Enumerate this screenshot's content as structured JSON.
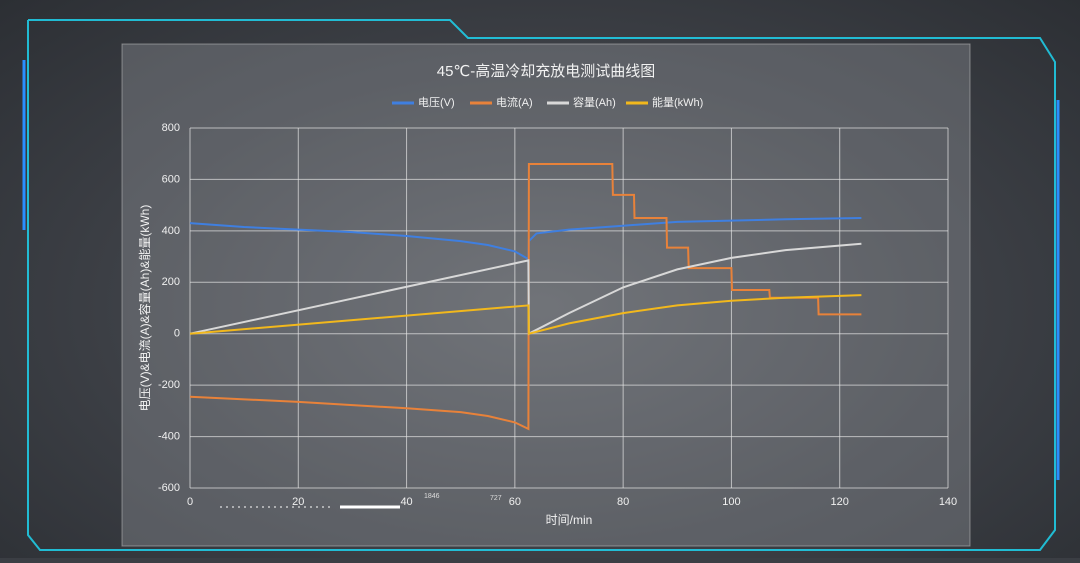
{
  "chart_data": {
    "type": "line",
    "title": "45℃-高温冷却充放电测试曲线图",
    "x_label": "时间/min",
    "y_label": "电压(V)&电流(A)&容量(Ah)&能量(kWh)",
    "xlim": [
      0,
      140
    ],
    "xticks": [
      0,
      20,
      40,
      60,
      80,
      100,
      120,
      140
    ],
    "ylim": [
      -600,
      800
    ],
    "yticks": [
      -600,
      -400,
      -200,
      0,
      200,
      400,
      600,
      800
    ],
    "grid": true,
    "legend": "top",
    "series": [
      {
        "name": "电压(V)",
        "color": "#3f7fe0",
        "x": [
          0,
          10,
          20,
          30,
          40,
          50,
          55,
          60,
          62.5,
          62.6,
          64,
          70,
          80,
          90,
          100,
          110,
          124
        ],
        "values": [
          430,
          415,
          405,
          395,
          380,
          360,
          345,
          320,
          290,
          360,
          390,
          405,
          420,
          435,
          440,
          445,
          450
        ]
      },
      {
        "name": "电流(A)",
        "color": "#e8823a",
        "x": [
          0,
          20,
          40,
          50,
          55,
          60,
          62.5,
          62.6,
          78,
          78.1,
          82,
          82.1,
          88,
          88.1,
          92,
          92.1,
          100,
          100.1,
          107,
          107.1,
          116,
          116.1,
          124
        ],
        "values": [
          -245,
          -265,
          -290,
          -305,
          -320,
          -345,
          -370,
          660,
          660,
          540,
          540,
          450,
          450,
          335,
          335,
          255,
          255,
          170,
          170,
          140,
          140,
          75,
          75
        ]
      },
      {
        "name": "容量(Ah)",
        "color": "#d8d8d8",
        "x": [
          0,
          62.5,
          62.6,
          70,
          80,
          90,
          100,
          110,
          124
        ],
        "values": [
          0,
          285,
          0,
          80,
          180,
          250,
          295,
          325,
          350
        ]
      },
      {
        "name": "能量(kWh)",
        "color": "#f2b81c",
        "x": [
          0,
          62.5,
          62.6,
          70,
          80,
          90,
          100,
          110,
          124
        ],
        "values": [
          0,
          110,
          0,
          40,
          80,
          110,
          128,
          140,
          150
        ]
      }
    ]
  },
  "decor": [
    "1846",
    "727"
  ]
}
